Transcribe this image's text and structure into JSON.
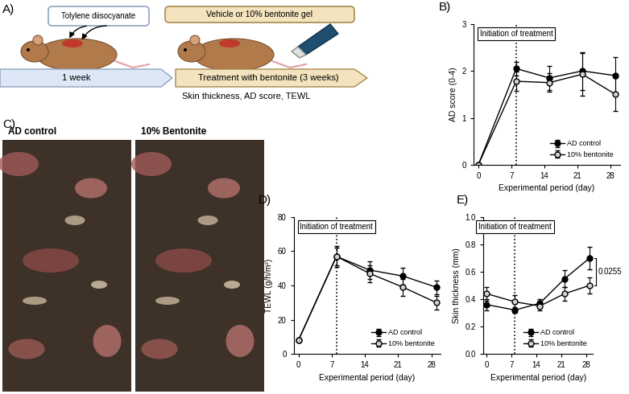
{
  "chart_data": [
    {
      "type": "line",
      "title": "B)",
      "x_label": "Experimental period (day)",
      "y_label": "AD score (0-4)",
      "x": [
        0,
        8,
        15,
        22,
        29
      ],
      "xlim": [
        -1,
        30
      ],
      "xticks": [
        0,
        7,
        14,
        21,
        28
      ],
      "ylim": [
        0,
        3
      ],
      "yticks": [
        0,
        1,
        2,
        3
      ],
      "legend": "lower right",
      "marker": "circle",
      "series": [
        {
          "name": "AD control",
          "color": "#000000",
          "values": [
            0,
            2.05,
            1.85,
            2.0,
            1.9
          ],
          "errors": [
            0,
            0.15,
            0.25,
            0.4,
            0.4
          ]
        },
        {
          "name": "10% bentonite",
          "color": "#d0d0d0",
          "values": [
            0,
            1.78,
            1.75,
            1.93,
            1.5
          ],
          "errors": [
            0,
            0.2,
            0.2,
            0.45,
            0.35
          ]
        }
      ],
      "treatment_start": {
        "text": "Initiation of treatment",
        "x": 8
      }
    },
    {
      "type": "line",
      "title": "D)",
      "x_label": "Experimental period (day)",
      "y_label": "TEWL (g/h/m²)",
      "x": [
        0,
        8,
        15,
        22,
        29
      ],
      "xlim": [
        -1,
        30
      ],
      "xticks": [
        0,
        7,
        14,
        21,
        28
      ],
      "ylim": [
        0,
        80
      ],
      "yticks": [
        0,
        20,
        40,
        60,
        80
      ],
      "legend": "lower right",
      "marker": "circle",
      "series": [
        {
          "name": "AD control",
          "color": "#000000",
          "values": [
            8,
            57,
            49,
            45.5,
            39
          ],
          "errors": [
            1,
            5,
            5,
            5,
            4
          ]
        },
        {
          "name": "10% bentonite",
          "color": "#d0d0d0",
          "values": [
            8,
            57,
            47,
            39,
            30
          ],
          "errors": [
            1,
            6,
            5,
            5,
            4
          ]
        }
      ],
      "treatment_start": {
        "text": "Initiation of treatment",
        "x": 8
      }
    },
    {
      "type": "line",
      "title": "E)",
      "x_label": "Experimental period (day)",
      "y_label": "Skin thickness (mm)",
      "x": [
        0,
        8,
        15,
        22,
        29
      ],
      "xlim": [
        -1,
        30
      ],
      "xticks": [
        0,
        7,
        14,
        21,
        28
      ],
      "ylim": [
        0.0,
        1.0
      ],
      "yticks": [
        0.0,
        0.2,
        0.4,
        0.6,
        0.8,
        1.0
      ],
      "legend": "lower right",
      "marker": "circle",
      "series": [
        {
          "name": "AD control",
          "color": "#000000",
          "values": [
            0.36,
            0.32,
            0.37,
            0.55,
            0.7
          ],
          "errors": [
            0.04,
            0.02,
            0.03,
            0.06,
            0.08
          ]
        },
        {
          "name": "10% bentonite",
          "color": "#d0d0d0",
          "values": [
            0.44,
            0.38,
            0.35,
            0.44,
            0.5
          ],
          "errors": [
            0.05,
            0.05,
            0.03,
            0.05,
            0.06
          ]
        }
      ],
      "treatment_start": {
        "text": "Initiation of treatment",
        "x": 8
      },
      "significance": {
        "text": "0.0255",
        "x": 29
      }
    }
  ],
  "diagram": {
    "label": "A)",
    "boxes": [
      "Tolylene diisocyanate",
      "Vehicle or 10% bentonite gel"
    ],
    "timeline": [
      "1 week",
      "Treatment with bentonite (3 weeks)"
    ],
    "measurements": "Skin thickness, AD score, TEWL"
  },
  "photos": {
    "label": "C)",
    "captions": [
      "AD control",
      "10% Bentonite"
    ]
  }
}
